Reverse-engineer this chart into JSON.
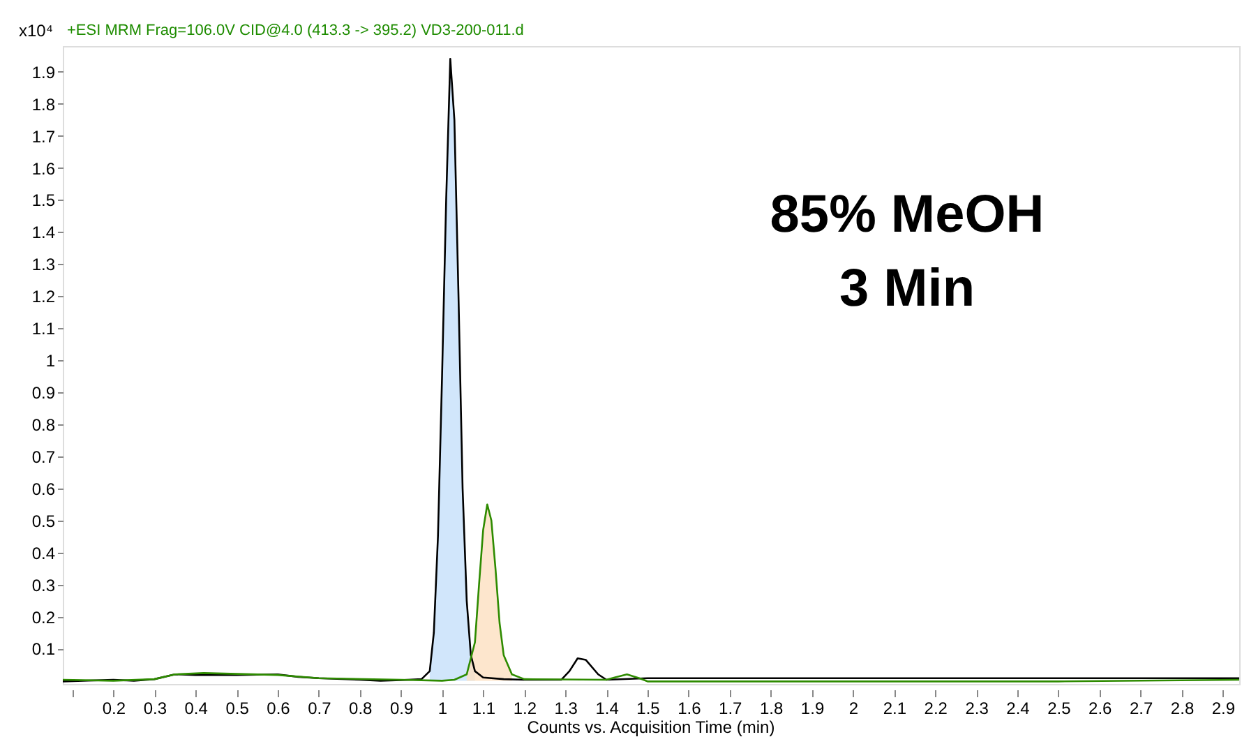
{
  "chart_data": {
    "type": "line",
    "ylabel": "x10⁴",
    "xlabel": "Counts vs. Acquisition Time (min)",
    "annotations": [
      "+ESI MRM Frag=106.0V CID@4.0 (413.3 -> 395.2) VD3-200-011.d",
      "85% MeOH",
      "3 Min"
    ],
    "xlim": [
      0.077,
      2.94
    ],
    "ylim": [
      -0.01,
      1.98
    ],
    "xticks": [
      {
        "value": 0.1,
        "label": null
      },
      0.2,
      0.3,
      0.4,
      0.5,
      0.6,
      0.7,
      0.8,
      0.9,
      1,
      1.1,
      1.2,
      1.3,
      1.4,
      1.5,
      1.6,
      1.7,
      1.8,
      1.9,
      2,
      2.1,
      2.2,
      2.3,
      2.4,
      2.5,
      2.6,
      2.7,
      2.8,
      2.9
    ],
    "yticks": [
      0.1,
      0.2,
      0.3,
      0.4,
      0.5,
      0.6,
      0.7,
      0.8,
      0.9,
      1,
      1.1,
      1.2,
      1.3,
      1.4,
      1.5,
      1.6,
      1.7,
      1.8,
      1.9
    ],
    "grid": false,
    "marker": "none",
    "line_style": "solid",
    "series": [
      {
        "type": "area",
        "color": "#c6e0fa",
        "x": [
          0.97,
          0.98,
          0.99,
          1.0,
          1.01,
          1.02,
          1.03,
          1.04,
          1.05,
          1.06,
          1.07,
          1.08
        ],
        "values": [
          0.03,
          0.15,
          0.45,
          0.95,
          1.5,
          1.94,
          1.75,
          1.2,
          0.6,
          0.25,
          0.08,
          0.03
        ]
      },
      {
        "type": "area",
        "color": "#fde0c0",
        "x": [
          1.06,
          1.08,
          1.09,
          1.1,
          1.11,
          1.12,
          1.13,
          1.14,
          1.15,
          1.17
        ],
        "values": [
          0.02,
          0.12,
          0.3,
          0.47,
          0.55,
          0.5,
          0.35,
          0.18,
          0.08,
          0.02
        ]
      },
      {
        "color": "#000000",
        "x": [
          0.077,
          0.2,
          0.25,
          0.3,
          0.35,
          0.4,
          0.5,
          0.6,
          0.65,
          0.7,
          0.8,
          0.85,
          0.9,
          0.95,
          0.97,
          0.98,
          0.99,
          1.0,
          1.01,
          1.02,
          1.03,
          1.04,
          1.05,
          1.06,
          1.07,
          1.08,
          1.1,
          1.15,
          1.2,
          1.29,
          1.31,
          1.33,
          1.35,
          1.38,
          1.4,
          1.5,
          2.0,
          2.5,
          2.94
        ],
        "values": [
          -0.002,
          0.003,
          0.0,
          0.005,
          0.02,
          0.018,
          0.018,
          0.02,
          0.012,
          0.008,
          0.003,
          0.0,
          0.002,
          0.005,
          0.03,
          0.15,
          0.45,
          0.95,
          1.5,
          1.94,
          1.75,
          1.2,
          0.6,
          0.25,
          0.08,
          0.03,
          0.01,
          0.005,
          0.003,
          0.003,
          0.03,
          0.07,
          0.065,
          0.02,
          0.003,
          0.008,
          0.008,
          0.008,
          0.008
        ]
      },
      {
        "color": "#2e8b00",
        "x": [
          0.077,
          0.2,
          0.3,
          0.35,
          0.42,
          0.6,
          0.7,
          0.9,
          1.0,
          1.03,
          1.06,
          1.08,
          1.09,
          1.1,
          1.11,
          1.12,
          1.13,
          1.14,
          1.15,
          1.17,
          1.2,
          1.4,
          1.42,
          1.45,
          1.48,
          1.5,
          2.0,
          2.5,
          2.94
        ],
        "values": [
          0.003,
          0.0,
          0.005,
          0.02,
          0.024,
          0.018,
          0.008,
          0.003,
          0.0,
          0.003,
          0.02,
          0.12,
          0.3,
          0.47,
          0.55,
          0.5,
          0.35,
          0.18,
          0.08,
          0.02,
          0.005,
          0.003,
          0.01,
          0.02,
          0.008,
          -0.002,
          -0.002,
          -0.002,
          0.003
        ]
      }
    ]
  }
}
